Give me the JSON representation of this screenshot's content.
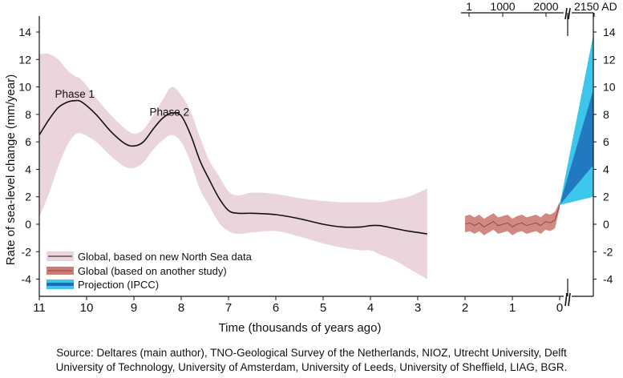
{
  "chart_data": {
    "type": "line",
    "ylabel": "Rate of sea-level change (mm/year)",
    "xlabel": "Time (thousands of years ago)",
    "ylim": [
      -5,
      15
    ],
    "y_ticks": [
      14,
      12,
      10,
      8,
      6,
      4,
      2,
      0,
      -2,
      -4
    ],
    "x_ticks": [
      11,
      10,
      9,
      8,
      7,
      6,
      5,
      4,
      3,
      2,
      1,
      0
    ],
    "top_axis_ticks": [
      "1",
      "1000",
      "2000",
      "2150 AD"
    ],
    "annotations": [
      {
        "text": "Phase 1",
        "x": 10.25,
        "y": 9.5
      },
      {
        "text": "Phase 2",
        "x": 8.25,
        "y": 8.2
      }
    ],
    "series": [
      {
        "name": "Global, based on new North Sea data",
        "x": [
          11,
          10.8,
          10.6,
          10.4,
          10.25,
          10.1,
          9.8,
          9.5,
          9.2,
          9.0,
          8.8,
          8.6,
          8.4,
          8.2,
          8.0,
          7.8,
          7.6,
          7.4,
          7.2,
          7.0,
          6.8,
          6.5,
          6.0,
          5.5,
          5.0,
          4.6,
          4.2,
          4.0,
          3.8,
          3.5,
          3.2,
          2.8
        ],
        "values": [
          6.5,
          7.6,
          8.5,
          8.9,
          9.0,
          8.9,
          8.0,
          6.8,
          5.9,
          5.7,
          6.0,
          6.9,
          7.7,
          8.1,
          7.9,
          6.5,
          4.6,
          3.2,
          1.9,
          1.0,
          0.8,
          0.8,
          0.7,
          0.4,
          0.0,
          -0.2,
          -0.2,
          -0.1,
          -0.1,
          -0.3,
          -0.5,
          -0.7
        ],
        "lower": [
          0.5,
          2.2,
          4.2,
          5.8,
          6.5,
          6.6,
          6.0,
          5.0,
          4.2,
          4.1,
          4.5,
          5.4,
          6.1,
          6.5,
          6.0,
          4.5,
          2.5,
          1.3,
          0.1,
          -0.5,
          -0.7,
          -0.6,
          -0.5,
          -0.9,
          -1.4,
          -1.7,
          -1.9,
          -1.9,
          -2.2,
          -2.6,
          -3.2,
          -4.0
        ],
        "upper": [
          12.4,
          12.4,
          12.0,
          11.2,
          10.8,
          10.5,
          9.2,
          8.0,
          7.0,
          6.6,
          6.9,
          7.9,
          9.0,
          10.0,
          9.4,
          8.2,
          6.3,
          4.6,
          3.5,
          2.4,
          2.1,
          2.3,
          2.2,
          1.9,
          1.7,
          1.6,
          1.6,
          1.6,
          1.6,
          1.8,
          2.0,
          2.6
        ]
      },
      {
        "name": "Global (based on another study)",
        "x": [
          2.0,
          1.9,
          1.8,
          1.7,
          1.6,
          1.5,
          1.4,
          1.3,
          1.2,
          1.1,
          1.0,
          0.9,
          0.8,
          0.7,
          0.6,
          0.5,
          0.4,
          0.3,
          0.2,
          0.1,
          0.0
        ],
        "values": [
          0.0,
          0.1,
          -0.1,
          0.1,
          -0.2,
          0.0,
          0.2,
          -0.1,
          0.0,
          0.1,
          -0.2,
          0.0,
          0.1,
          -0.1,
          0.0,
          0.1,
          -0.1,
          0.2,
          0.1,
          0.3,
          1.4
        ],
        "band": 0.6
      },
      {
        "name": "Projection (IPCC)",
        "x_top": [
          "2000",
          "2150 AD"
        ],
        "start": 1.4,
        "end_outer": [
          2.0,
          13.8
        ],
        "end_inner": [
          4.3,
          9.8
        ]
      }
    ],
    "colors": {
      "band": "#ead4de",
      "mean_line": "#111111",
      "other_study_band": "#cd7b75",
      "other_study_line": "#8a4540",
      "projection_outer": "#3cc6ea",
      "projection_inner": "#1f6bb8"
    },
    "legend_position": "bottom-left",
    "grid": false
  },
  "source": {
    "line1": "Source: Deltares (main author), TNO-Geological Survey of the Netherlands, NIOZ, Utrecht University, Delft",
    "line2": "University of Technology, University of Amsterdam, University of Leeds, University of Sheffield, LIAG, BGR."
  }
}
